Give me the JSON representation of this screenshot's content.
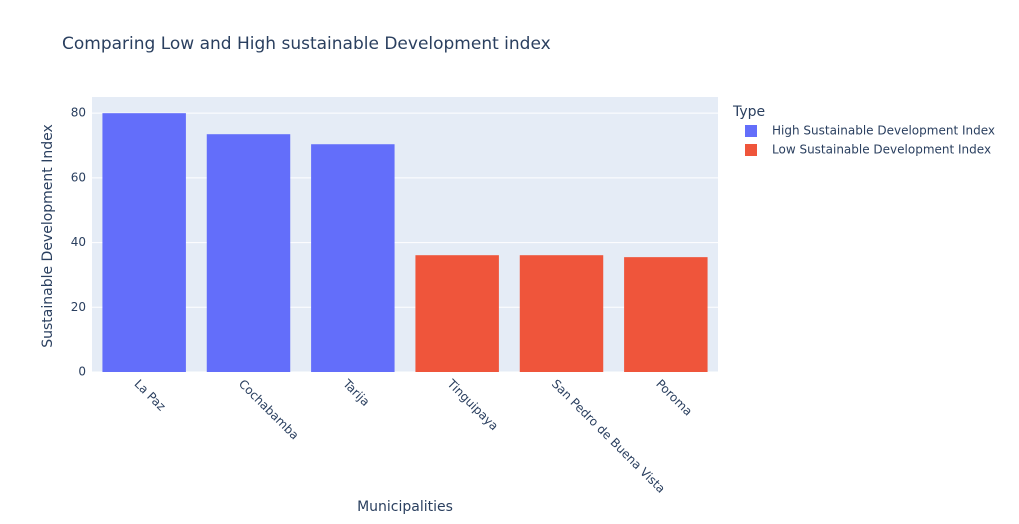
{
  "chart_data": {
    "type": "bar",
    "title": "Comparing Low and High sustainable Development index",
    "x_label": "Municipalities",
    "y_label": "Sustainable Development Index",
    "legend_title": "Type",
    "categories": [
      "La Paz",
      "Cochabamba",
      "Tarija",
      "Tinguipaya",
      "San Pedro de Buena Vista",
      "Poroma"
    ],
    "series": [
      {
        "name": "High Sustainable Development Index",
        "color": "#636efa",
        "values": [
          80.0,
          73.5,
          70.4,
          null,
          null,
          null
        ]
      },
      {
        "name": "Low Sustainable Development Index",
        "color": "#ef553b",
        "values": [
          null,
          null,
          null,
          36.1,
          36.1,
          35.5
        ]
      }
    ],
    "ylim": [
      0,
      85
    ],
    "yticks": [
      0,
      20,
      40,
      60,
      80
    ],
    "grid": true
  }
}
